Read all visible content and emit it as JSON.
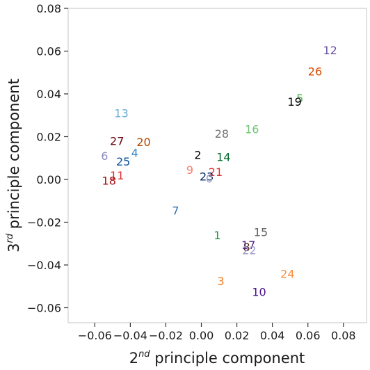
{
  "chart_data": {
    "type": "scatter",
    "title": "",
    "xlabel": {
      "prefix": "2",
      "sup": "nd",
      "suffix": " principle component"
    },
    "ylabel": {
      "prefix": "3",
      "sup": "rd",
      "suffix": " principle component"
    },
    "xlim": [
      -0.075,
      0.093
    ],
    "ylim": [
      -0.067,
      0.08
    ],
    "xticks": [
      -0.06,
      -0.04,
      -0.02,
      0.0,
      0.02,
      0.04,
      0.06,
      0.08
    ],
    "xtick_labels": [
      "−0.06",
      "−0.04",
      "−0.02",
      "0.00",
      "0.02",
      "0.04",
      "0.06",
      "0.08"
    ],
    "yticks": [
      -0.06,
      -0.04,
      -0.02,
      0.0,
      0.02,
      0.04,
      0.06,
      0.08
    ],
    "ytick_labels": [
      "−0.06",
      "−0.04",
      "−0.02",
      "0.00",
      "0.02",
      "0.04",
      "0.06",
      "0.08"
    ],
    "grid": false,
    "points": [
      {
        "label": "1",
        "x": 0.009,
        "y": -0.026,
        "color": "#1a9641"
      },
      {
        "label": "2",
        "x": -0.002,
        "y": 0.0115,
        "color": "#000000"
      },
      {
        "label": "3",
        "x": 0.011,
        "y": -0.0475,
        "color": "#f57c20"
      },
      {
        "label": "4",
        "x": -0.0375,
        "y": 0.0125,
        "color": "#3a89c9"
      },
      {
        "label": "5",
        "x": 0.0555,
        "y": 0.038,
        "color": "#4daf4a"
      },
      {
        "label": "6",
        "x": -0.0545,
        "y": 0.011,
        "color": "#8c8cc4"
      },
      {
        "label": "7",
        "x": -0.0145,
        "y": -0.0145,
        "color": "#2c72b8"
      },
      {
        "label": "8",
        "x": 0.0255,
        "y": -0.0315,
        "color": "#5a2c1a"
      },
      {
        "label": "9",
        "x": -0.0065,
        "y": 0.0045,
        "color": "#f28072"
      },
      {
        "label": "10",
        "x": 0.0325,
        "y": -0.0525,
        "color": "#4b0f8c"
      },
      {
        "label": "11",
        "x": -0.0475,
        "y": 0.002,
        "color": "#e03131"
      },
      {
        "label": "12",
        "x": 0.0725,
        "y": 0.0605,
        "color": "#6a51a3"
      },
      {
        "label": "13",
        "x": -0.045,
        "y": 0.031,
        "color": "#6baed6"
      },
      {
        "label": "14",
        "x": 0.0125,
        "y": 0.0105,
        "color": "#006d2c"
      },
      {
        "label": "15",
        "x": 0.0335,
        "y": -0.0245,
        "color": "#636363"
      },
      {
        "label": "16",
        "x": 0.0285,
        "y": 0.0235,
        "color": "#74c476"
      },
      {
        "label": "17",
        "x": 0.0265,
        "y": -0.0305,
        "color": "#54278f"
      },
      {
        "label": "18",
        "x": -0.052,
        "y": -0.0005,
        "color": "#a50f15"
      },
      {
        "label": "19",
        "x": 0.0525,
        "y": 0.0365,
        "color": "#000000"
      },
      {
        "label": "20",
        "x": -0.0325,
        "y": 0.0175,
        "color": "#b34700"
      },
      {
        "label": "21",
        "x": 0.008,
        "y": 0.0035,
        "color": "#e03131"
      },
      {
        "label": "22",
        "x": 0.027,
        "y": -0.033,
        "color": "#9e9ac8"
      },
      {
        "label": "23",
        "x": 0.003,
        "y": 0.0015,
        "color": "#08306b"
      },
      {
        "label": "24",
        "x": 0.0485,
        "y": -0.044,
        "color": "#fd8d3c"
      },
      {
        "label": "25",
        "x": -0.044,
        "y": 0.0085,
        "color": "#08519c"
      },
      {
        "label": "26",
        "x": 0.064,
        "y": 0.0505,
        "color": "#d94801"
      },
      {
        "label": "27",
        "x": -0.0475,
        "y": 0.018,
        "color": "#67000d"
      },
      {
        "label": "28",
        "x": 0.0115,
        "y": 0.0215,
        "color": "#737373"
      },
      {
        "label": "0",
        "x": 0.0045,
        "y": 0.0005,
        "color": "#9e9ac8"
      }
    ]
  }
}
